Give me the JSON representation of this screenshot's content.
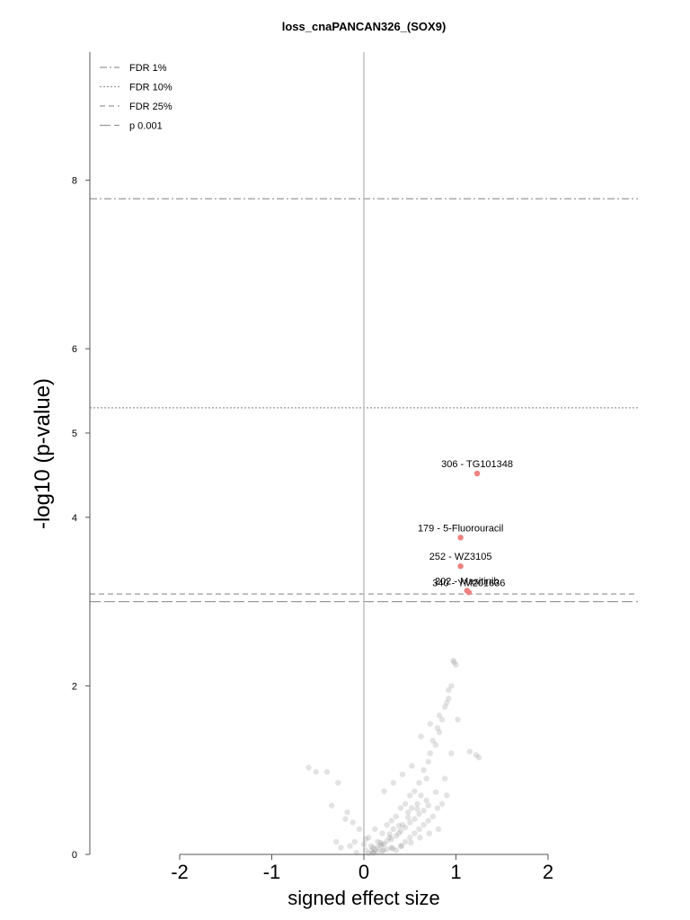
{
  "chart_data": {
    "type": "scatter",
    "title": "loss_cnaPANCAN326_(SOX9)",
    "xlabel": "signed effect size",
    "ylabel": "-log10 (p-value)",
    "xlim": [
      -2,
      2
    ],
    "ylim": [
      0,
      8
    ],
    "xticks": [
      "-2",
      "-1",
      "0",
      "1",
      "2"
    ],
    "yticks": [
      "0",
      "2",
      "4",
      "5",
      "6",
      "8"
    ],
    "grid": false,
    "legend_position": "top-left",
    "thresholds": [
      {
        "name": "FDR 1%",
        "y": 7.78,
        "style": "dashdot"
      },
      {
        "name": "FDR 10%",
        "y": 5.3,
        "style": "dotted"
      },
      {
        "name": "FDR 25%",
        "y": 3.09,
        "style": "dashed"
      },
      {
        "name": "p 0.001",
        "y": 3.0,
        "style": "longdash"
      }
    ],
    "highlighted": [
      {
        "label": "306 - TG101348",
        "x": 1.23,
        "y": 4.52
      },
      {
        "label": "179 - 5-Fluorouracil",
        "x": 1.05,
        "y": 3.76
      },
      {
        "label": "252 - WZ3105",
        "x": 1.05,
        "y": 3.42
      },
      {
        "label": "202 - Masitinib",
        "x": 1.12,
        "y": 3.13
      },
      {
        "label": "340 - YM201636",
        "x": 1.14,
        "y": 3.11
      }
    ],
    "points_x": [
      -0.6,
      -0.52,
      -0.4,
      -0.28,
      -0.35,
      -0.18,
      -0.2,
      -0.12,
      -0.15,
      -0.05,
      -0.1,
      0.0,
      0.02,
      0.05,
      0.08,
      0.1,
      0.12,
      0.15,
      0.18,
      0.2,
      0.22,
      0.25,
      0.28,
      0.3,
      0.32,
      0.35,
      0.38,
      0.4,
      0.42,
      0.45,
      0.48,
      0.5,
      0.52,
      0.55,
      0.58,
      0.6,
      0.62,
      0.65,
      0.68,
      0.7,
      0.72,
      0.75,
      0.78,
      0.8,
      0.82,
      0.85,
      0.88,
      0.9,
      0.92,
      0.95,
      0.97,
      0.98,
      1.0,
      0.35,
      0.4,
      0.3,
      0.25,
      0.2,
      0.15,
      0.1,
      0.05,
      0.45,
      0.5,
      0.55,
      0.6,
      0.65,
      0.7,
      0.75,
      0.8,
      0.85,
      0.9,
      0.3,
      0.35,
      0.4,
      0.45,
      0.5,
      0.55,
      0.6,
      0.65,
      0.7,
      0.2,
      0.25,
      0.15,
      0.12,
      0.08,
      0.18,
      0.28,
      0.38,
      0.48,
      0.58,
      0.68,
      0.78,
      0.88,
      0.95,
      1.02,
      1.15,
      1.22,
      1.25,
      0.62,
      0.72,
      0.82,
      0.92,
      0.52,
      0.42,
      0.32,
      0.22,
      0.02,
      -0.08,
      -0.25,
      -0.3,
      0.11,
      0.21,
      0.31,
      0.41,
      0.51,
      0.61,
      0.71,
      0.81
    ],
    "points_y": [
      1.03,
      0.98,
      0.98,
      0.85,
      0.58,
      0.5,
      0.42,
      0.38,
      0.1,
      0.3,
      0.15,
      0.12,
      0.05,
      0.2,
      0.1,
      0.08,
      0.3,
      0.15,
      0.1,
      0.25,
      0.12,
      0.35,
      0.2,
      0.4,
      0.3,
      0.45,
      0.25,
      0.55,
      0.35,
      0.6,
      0.5,
      0.7,
      0.55,
      0.75,
      0.6,
      0.85,
      0.7,
      1.0,
      0.9,
      1.1,
      1.2,
      1.35,
      1.3,
      1.5,
      1.45,
      1.6,
      1.75,
      1.8,
      1.95,
      2.0,
      2.3,
      2.28,
      2.25,
      0.05,
      0.1,
      0.08,
      0.06,
      0.04,
      0.03,
      0.02,
      0.01,
      0.15,
      0.2,
      0.25,
      0.3,
      0.35,
      0.4,
      0.45,
      0.55,
      0.6,
      0.7,
      0.18,
      0.22,
      0.28,
      0.32,
      0.38,
      0.42,
      0.48,
      0.52,
      0.58,
      0.12,
      0.16,
      0.08,
      0.06,
      0.04,
      0.14,
      0.24,
      0.34,
      0.44,
      0.54,
      0.64,
      0.74,
      0.9,
      1.2,
      1.6,
      1.22,
      1.18,
      1.15,
      1.4,
      1.55,
      1.65,
      1.85,
      1.05,
      0.95,
      0.85,
      0.75,
      0.18,
      0.02,
      0.08,
      0.15,
      0.02,
      0.05,
      0.07,
      0.1,
      0.14,
      0.2,
      0.25,
      0.3
    ],
    "colors": {
      "points": "#808080",
      "highlight": "#f08080",
      "thresholds": "#999999",
      "zero_line": "#c0c0c0",
      "axes": "#555555"
    }
  }
}
